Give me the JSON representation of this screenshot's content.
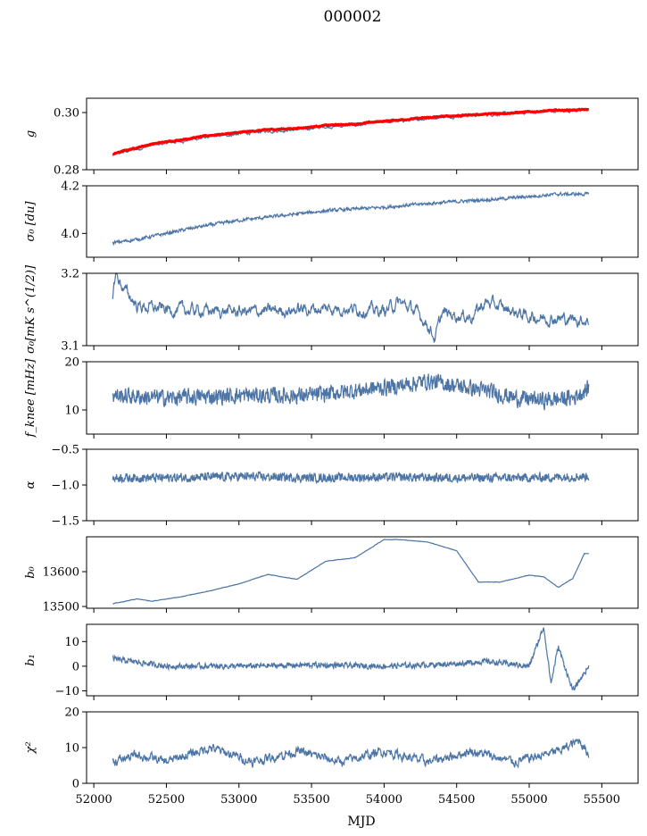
{
  "figure": {
    "title": "000002",
    "xlabel": "MJD",
    "xlim": [
      51950,
      55750
    ],
    "xticks": [
      52000,
      52500,
      53000,
      53500,
      54000,
      54500,
      55000,
      55500
    ],
    "x_start": 52130,
    "x_end": 55410
  },
  "colors": {
    "series": "#4c74a4",
    "overlay": "#ff0000"
  },
  "chart_data": [
    {
      "type": "line",
      "ylabel": "g",
      "ylim": [
        0.28,
        0.305
      ],
      "yticks": [
        0.28,
        0.3
      ],
      "ytick_labels": [
        "0.28",
        "0.30"
      ],
      "x": [
        52130,
        52200,
        52400,
        52600,
        52800,
        53000,
        53200,
        53400,
        53600,
        53800,
        54000,
        54200,
        54400,
        54600,
        54800,
        55000,
        55200,
        55410
      ],
      "series": [
        {
          "role": "data",
          "values": [
            0.285,
            0.286,
            0.2885,
            0.29,
            0.2915,
            0.2925,
            0.2935,
            0.294,
            0.295,
            0.2955,
            0.2965,
            0.2975,
            0.2985,
            0.299,
            0.2995,
            0.3,
            0.3005,
            0.301
          ]
        },
        {
          "role": "fit",
          "values": [
            0.2855,
            0.2865,
            0.289,
            0.2905,
            0.292,
            0.293,
            0.294,
            0.2945,
            0.2955,
            0.296,
            0.297,
            0.2978,
            0.2986,
            0.2992,
            0.2997,
            0.3002,
            0.3008,
            0.301
          ]
        }
      ]
    },
    {
      "type": "line",
      "ylabel": "σ₀ [du]",
      "ylim": [
        3.9,
        4.2
      ],
      "yticks": [
        4.0,
        4.2
      ],
      "ytick_labels": [
        "4.0",
        "4.2"
      ],
      "x": [
        52130,
        52300,
        52500,
        52700,
        53000,
        53300,
        53600,
        54000,
        54400,
        54800,
        55000,
        55200,
        55410
      ],
      "series": [
        {
          "role": "data",
          "values": [
            3.96,
            3.975,
            4.0,
            4.025,
            4.055,
            4.075,
            4.095,
            4.11,
            4.13,
            4.145,
            4.155,
            4.165,
            4.165
          ]
        }
      ]
    },
    {
      "type": "line",
      "ylabel": "σ₀[mK s^(1/2)]",
      "ylim": [
        3.1,
        3.2
      ],
      "yticks": [
        3.1,
        3.2
      ],
      "ytick_labels": [
        "3.1",
        "3.2"
      ],
      "x": [
        52130,
        52150,
        52200,
        52300,
        52500,
        52800,
        53100,
        53400,
        53700,
        54000,
        54100,
        54200,
        54300,
        54350,
        54400,
        54600,
        54700,
        55000,
        55410
      ],
      "series": [
        {
          "role": "data",
          "values": [
            3.17,
            3.2,
            3.18,
            3.155,
            3.15,
            3.148,
            3.147,
            3.15,
            3.152,
            3.148,
            3.16,
            3.15,
            3.13,
            3.11,
            3.145,
            3.14,
            3.16,
            3.14,
            3.135
          ]
        }
      ]
    },
    {
      "type": "line",
      "ylabel": "f_knee [mHz]",
      "ylim": [
        5,
        20
      ],
      "yticks": [
        10,
        20
      ],
      "ytick_labels": [
        "10",
        "20"
      ],
      "x": [
        52130,
        52500,
        53000,
        53500,
        53800,
        54100,
        54300,
        54500,
        54700,
        54900,
        55100,
        55300,
        55410
      ],
      "series": [
        {
          "role": "data",
          "values": [
            13,
            12.5,
            13,
            13,
            14,
            15,
            16,
            15,
            14,
            12.5,
            12,
            12.5,
            14.5
          ]
        }
      ]
    },
    {
      "type": "line",
      "ylabel": "α",
      "ylim": [
        -1.5,
        -0.5
      ],
      "yticks": [
        -1.5,
        -1.0,
        -0.5
      ],
      "ytick_labels": [
        "−1.5",
        "−1.0",
        "−0.5"
      ],
      "x": [
        52130,
        52500,
        53000,
        53500,
        54000,
        54500,
        55000,
        55410
      ],
      "series": [
        {
          "role": "data",
          "values": [
            -0.9,
            -0.9,
            -0.88,
            -0.9,
            -0.89,
            -0.9,
            -0.9,
            -0.88
          ]
        }
      ]
    },
    {
      "type": "line",
      "ylabel": "b₀",
      "ylim": [
        13495,
        13700
      ],
      "yticks": [
        13500,
        13600
      ],
      "ytick_labels": [
        "13500",
        "13600"
      ],
      "x": [
        52130,
        52300,
        52400,
        52600,
        52800,
        53000,
        53200,
        53400,
        53600,
        53800,
        54000,
        54100,
        54300,
        54500,
        54650,
        54800,
        55000,
        55100,
        55200,
        55300,
        55380,
        55410
      ],
      "series": [
        {
          "role": "data",
          "values": [
            13508,
            13522,
            13515,
            13528,
            13545,
            13565,
            13592,
            13578,
            13630,
            13640,
            13692,
            13692,
            13685,
            13660,
            13570,
            13570,
            13590,
            13585,
            13555,
            13580,
            13652,
            13652
          ]
        }
      ]
    },
    {
      "type": "line",
      "ylabel": "b₁",
      "ylim": [
        -12,
        17
      ],
      "yticks": [
        -10,
        0,
        10
      ],
      "ytick_labels": [
        "−10",
        "0",
        "10"
      ],
      "x": [
        52130,
        52500,
        53000,
        53500,
        54000,
        54500,
        54700,
        55000,
        55100,
        55150,
        55200,
        55300,
        55410
      ],
      "series": [
        {
          "role": "data",
          "values": [
            3,
            0,
            0,
            0.5,
            0,
            1,
            2,
            0,
            16,
            -7,
            8,
            -10,
            0
          ]
        }
      ]
    },
    {
      "type": "line",
      "ylabel": "χ²",
      "ylim": [
        0,
        20
      ],
      "yticks": [
        0,
        10,
        20
      ],
      "ytick_labels": [
        "0",
        "10",
        "20"
      ],
      "x": [
        52130,
        52300,
        52500,
        52800,
        53100,
        53400,
        53700,
        54000,
        54300,
        54600,
        54900,
        55200,
        55350,
        55410
      ],
      "series": [
        {
          "role": "data",
          "values": [
            6,
            8,
            6,
            10,
            6,
            9,
            6,
            9,
            6,
            9,
            6,
            9,
            12,
            8
          ]
        }
      ]
    }
  ]
}
